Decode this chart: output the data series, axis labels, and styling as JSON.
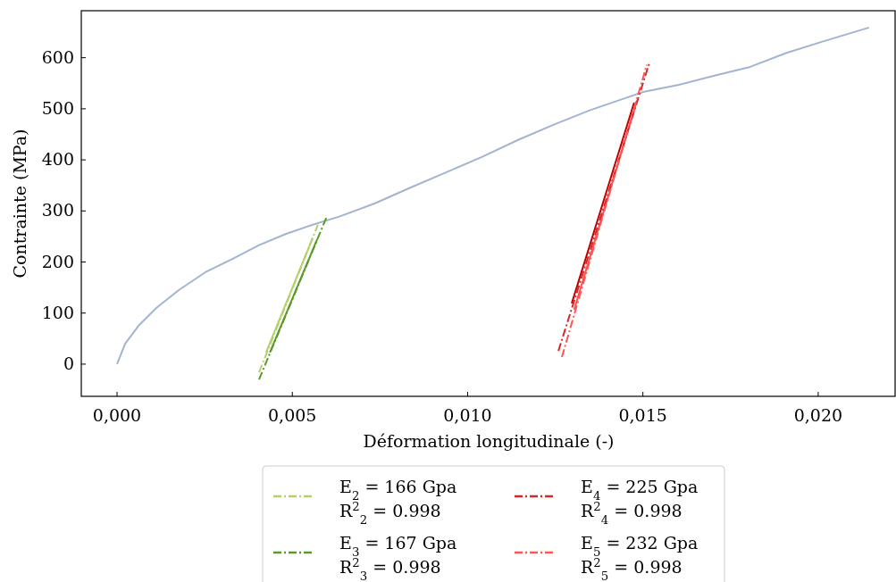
{
  "chart_data": {
    "type": "line",
    "xlabel": "Déformation longitudinale (-)",
    "ylabel": "Contrainte (MPa)",
    "xlim": [
      -0.00102,
      0.02222
    ],
    "ylim": [
      -63,
      692
    ],
    "xticks": [
      {
        "value": 0,
        "label": "0,000"
      },
      {
        "value": 0.005,
        "label": "0,005"
      },
      {
        "value": 0.01,
        "label": "0,010"
      },
      {
        "value": 0.015,
        "label": "0,015"
      },
      {
        "value": 0.02,
        "label": "0,020"
      }
    ],
    "yticks": [
      0,
      100,
      200,
      300,
      400,
      500,
      600
    ],
    "grid": false,
    "legend": "bottom",
    "marker": "none",
    "series": [
      {
        "color": "#a3b4d1",
        "line_style": "solid",
        "x": [
          0,
          0.00023,
          0.00061,
          0.00112,
          0.00176,
          0.00252,
          0.00329,
          0.00405,
          0.00482,
          0.00558,
          0.00634,
          0.00736,
          0.00838,
          0.0094,
          0.01042,
          0.01144,
          0.01246,
          0.01348,
          0.0145,
          0.01501,
          0.01603,
          0.01704,
          0.01806,
          0.01908,
          0.0201,
          0.02145
        ],
        "values": [
          0,
          40,
          75,
          110,
          145,
          180,
          206,
          233,
          255,
          273,
          289,
          315,
          346,
          376,
          406,
          439,
          469,
          497,
          521,
          533,
          547,
          565,
          582,
          609,
          631,
          659
        ]
      },
      {
        "color": "#b5cf6b",
        "line_style": "solid",
        "x": [
          0.00425,
          0.00558
        ],
        "values": [
          23,
          247
        ]
      },
      {
        "color": "#5a9a2a",
        "line_style": "solid",
        "x": [
          0.00436,
          0.00571
        ],
        "values": [
          23,
          245
        ]
      },
      {
        "color": "#c00000",
        "line_style": "solid",
        "x": [
          0.01297,
          0.01475
        ],
        "values": [
          119,
          512
        ]
      },
      {
        "color": "#ff4d4d",
        "line_style": "solid",
        "x": [
          0.01304,
          0.01483
        ],
        "values": [
          107,
          516
        ]
      },
      {
        "name": "E$_{2}$ = 166 Gpa\nR$^{2}$$_{2}$ = 0.998",
        "color": "#b5cf6b",
        "line_style": "dashdot",
        "x": [
          0.00405,
          0.00573
        ],
        "values": [
          -16,
          273
        ]
      },
      {
        "name": "E$_{3}$ = 167 Gpa\nR$^{2}$$_{3}$ = 0.998",
        "color": "#5a9a2a",
        "line_style": "dashdot",
        "x": [
          0.00405,
          0.00599
        ],
        "values": [
          -30,
          290
        ]
      },
      {
        "name": "E$_{4}$ = 225 Gpa\nR$^{2}$$_{4}$ = 0.998",
        "color": "#d62728",
        "line_style": "dashdot",
        "x": [
          0.01259,
          0.01519
        ],
        "values": [
          26,
          591
        ]
      },
      {
        "name": "E$_{5}$ = 232 Gpa\nR$^{2}$$_{5}$ = 0.998",
        "color": "#ff5555",
        "line_style": "dashdot",
        "x": [
          0.01269,
          0.01511
        ],
        "values": [
          14,
          586
        ]
      }
    ]
  }
}
